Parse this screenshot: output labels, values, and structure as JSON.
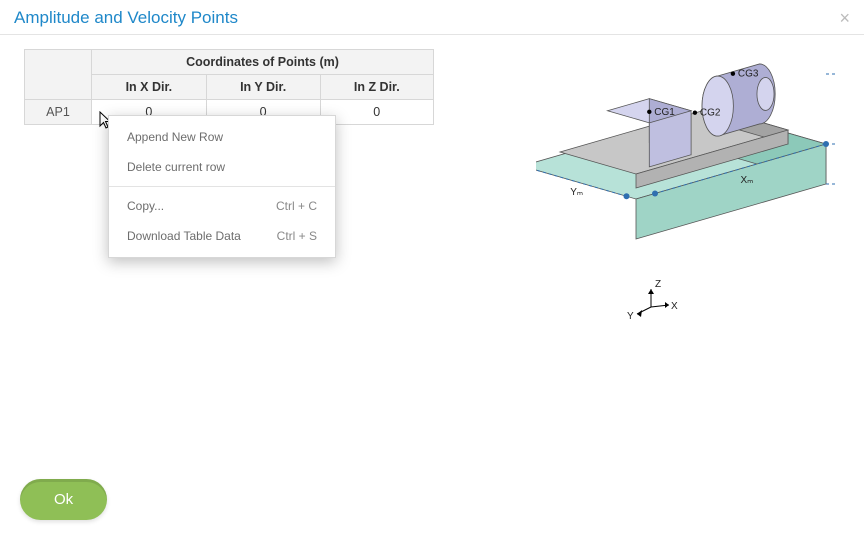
{
  "dialog": {
    "title": "Amplitude and Velocity Points",
    "close_glyph": "×"
  },
  "table": {
    "group_header": "Coordinates of Points (m)",
    "columns": [
      "In X Dir.",
      "In Y Dir.",
      "In Z Dir."
    ],
    "rows": [
      {
        "label": "AP1",
        "values": [
          "0",
          "0",
          "0"
        ]
      }
    ],
    "cell_bg": "#ffffff",
    "header_bg": "#f3f3f3",
    "border_color": "#d7d7d7"
  },
  "context_menu": {
    "items": [
      {
        "label": "Append New Row",
        "shortcut": ""
      },
      {
        "label": "Delete current row",
        "shortcut": ""
      },
      {
        "sep": true
      },
      {
        "label": "Copy...",
        "shortcut": "Ctrl + C"
      },
      {
        "label": "Download Table Data",
        "shortcut": "Ctrl + S"
      }
    ]
  },
  "footer": {
    "ok_label": "Ok",
    "ok_bg": "#8fbf56",
    "ok_color": "#ffffff"
  },
  "diagram": {
    "labels": {
      "cg1": "CG1",
      "cg2": "CG2",
      "cg3": "CG3",
      "xm": "Xₘ",
      "ym": "Yₘ",
      "zm": "Zₘ",
      "axis_x": "X",
      "axis_y": "Y",
      "axis_z": "Z"
    },
    "colors": {
      "base_top": "#b7e2d8",
      "base_side_l": "#9fd4c6",
      "base_side_r": "#8cc9b9",
      "plate_top": "#c7c7c7",
      "plate_side_l": "#b2b2b2",
      "plate_side_r": "#a3a3a3",
      "block_top": "#d4d4ee",
      "block_side_l": "#bfbfe0",
      "block_side_r": "#aeaed4",
      "cyl_light": "#d4d4ee",
      "cyl_dark": "#aeaed4",
      "dim_line": "#2f6fb0",
      "dim_dot": "#2f6fb0",
      "outline": "#555555"
    }
  }
}
